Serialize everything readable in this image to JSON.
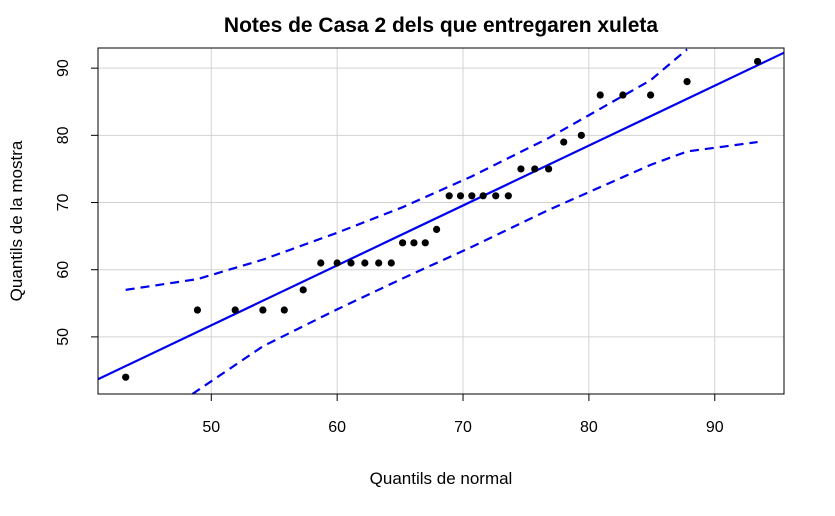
{
  "chart_data": {
    "type": "scatter",
    "title": "Notes de Casa 2 dels que entregaren xuleta",
    "xlabel": "Quantils de normal",
    "ylabel": "Quantils de la mostra",
    "xlim": [
      41,
      95.5
    ],
    "ylim": [
      41.5,
      93
    ],
    "xticks": [
      50,
      60,
      70,
      80,
      90
    ],
    "yticks": [
      50,
      60,
      70,
      80,
      90
    ],
    "grid": true,
    "points": [
      {
        "x": 43.2,
        "y": 44
      },
      {
        "x": 48.9,
        "y": 54
      },
      {
        "x": 51.9,
        "y": 54
      },
      {
        "x": 54.1,
        "y": 54
      },
      {
        "x": 55.8,
        "y": 54
      },
      {
        "x": 57.3,
        "y": 57
      },
      {
        "x": 58.7,
        "y": 61
      },
      {
        "x": 60.0,
        "y": 61
      },
      {
        "x": 61.1,
        "y": 61
      },
      {
        "x": 62.2,
        "y": 61
      },
      {
        "x": 63.3,
        "y": 61
      },
      {
        "x": 64.3,
        "y": 61
      },
      {
        "x": 65.2,
        "y": 64
      },
      {
        "x": 66.1,
        "y": 64
      },
      {
        "x": 67.0,
        "y": 64
      },
      {
        "x": 67.9,
        "y": 66
      },
      {
        "x": 68.9,
        "y": 71
      },
      {
        "x": 69.8,
        "y": 71
      },
      {
        "x": 70.7,
        "y": 71
      },
      {
        "x": 71.6,
        "y": 71
      },
      {
        "x": 72.6,
        "y": 71
      },
      {
        "x": 73.6,
        "y": 71
      },
      {
        "x": 74.6,
        "y": 75
      },
      {
        "x": 75.7,
        "y": 75
      },
      {
        "x": 76.8,
        "y": 75
      },
      {
        "x": 78.0,
        "y": 79
      },
      {
        "x": 79.4,
        "y": 80
      },
      {
        "x": 80.9,
        "y": 86
      },
      {
        "x": 82.7,
        "y": 86
      },
      {
        "x": 84.9,
        "y": 86
      },
      {
        "x": 87.8,
        "y": 88
      },
      {
        "x": 93.4,
        "y": 91
      }
    ],
    "reference_line": {
      "x": [
        41,
        95.5
      ],
      "y": [
        43.7,
        92.3
      ]
    },
    "confidence_band": {
      "upper": {
        "x": [
          43.2,
          48.9,
          54.1,
          60.0,
          65.2,
          70.7,
          76.8,
          84.9,
          87.8
        ],
        "y": [
          57.0,
          58.6,
          61.5,
          65.5,
          69.3,
          73.9,
          79.6,
          88.2,
          92.8
        ]
      },
      "lower": {
        "x": [
          48.5,
          54.1,
          60.0,
          65.2,
          70.7,
          76.8,
          84.9,
          87.8,
          93.4
        ],
        "y": [
          41.5,
          48.6,
          54.1,
          58.7,
          63.4,
          68.9,
          75.6,
          77.6,
          79.0
        ]
      }
    },
    "colors": {
      "points": "#000000",
      "line": "#0000ee",
      "band": "#0000ee",
      "grid": "#d3d3d3"
    }
  }
}
